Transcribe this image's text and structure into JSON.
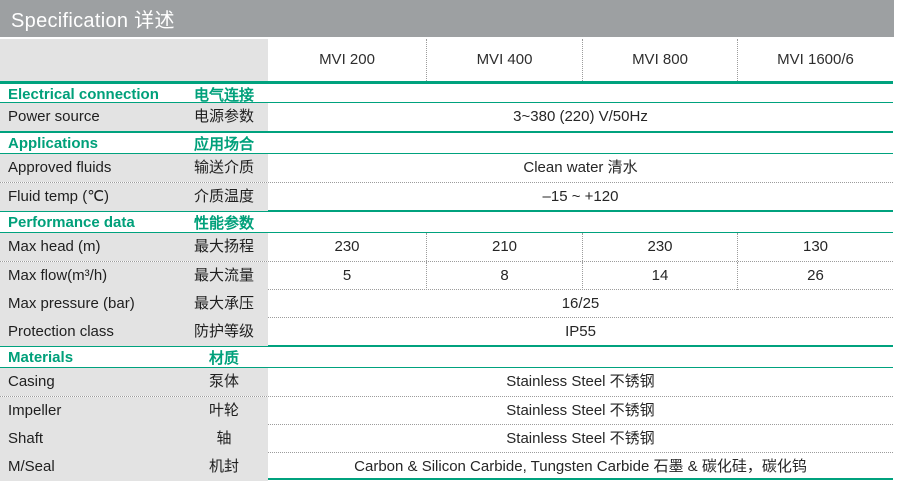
{
  "title": "Specification 详述",
  "columns": [
    "MVI 200",
    "MVI 400",
    "MVI 800",
    "MVI 1600/6"
  ],
  "sections": [
    {
      "header_en": "Electrical connection",
      "header_zh": "电气连接",
      "rows": [
        {
          "label_en": "Power source",
          "label_zh": "电源参数",
          "span": "3~380 (220) V/50Hz"
        }
      ]
    },
    {
      "header_en": "Applications",
      "header_zh": "应用场合",
      "rows": [
        {
          "label_en": "Approved fluids",
          "label_zh": "输送介质",
          "span": "Clean water 清水"
        },
        {
          "label_en": "Fluid temp (℃)",
          "label_zh": "介质温度",
          "span": "–15 ~ +120"
        }
      ]
    },
    {
      "header_en": "Performance data",
      "header_zh": "性能参数",
      "rows": [
        {
          "label_en": "Max head (m)",
          "label_zh": "最大扬程",
          "values": [
            "230",
            "210",
            "230",
            "130"
          ]
        },
        {
          "label_en": "Max flow(m³/h)",
          "label_zh": "最大流量",
          "values": [
            "5",
            "8",
            "14",
            "26"
          ]
        },
        {
          "label_en": "Max pressure (bar)",
          "label_zh": "最大承压",
          "span": "16/25"
        },
        {
          "label_en": "Protection class",
          "label_zh": "防护等级",
          "span": "IP55"
        }
      ]
    },
    {
      "header_en": "Materials",
      "header_zh": "材质",
      "rows": [
        {
          "label_en": "Casing",
          "label_zh": "泵体",
          "span": "Stainless Steel 不锈钢"
        },
        {
          "label_en": "Impeller",
          "label_zh": "叶轮",
          "span": "Stainless Steel 不锈钢"
        },
        {
          "label_en": "Shaft",
          "label_zh": "轴",
          "span": "Stainless Steel 不锈钢"
        },
        {
          "label_en": "M/Seal",
          "label_zh": "机封",
          "span": "Carbon & Silicon Carbide, Tungsten Carbide 石墨 & 碳化硅，碳化钨"
        }
      ]
    }
  ],
  "colors": {
    "accent_green": "#00a27e",
    "titlebar_gray": "#9da0a2",
    "label_bg": "#e3e3e3"
  }
}
